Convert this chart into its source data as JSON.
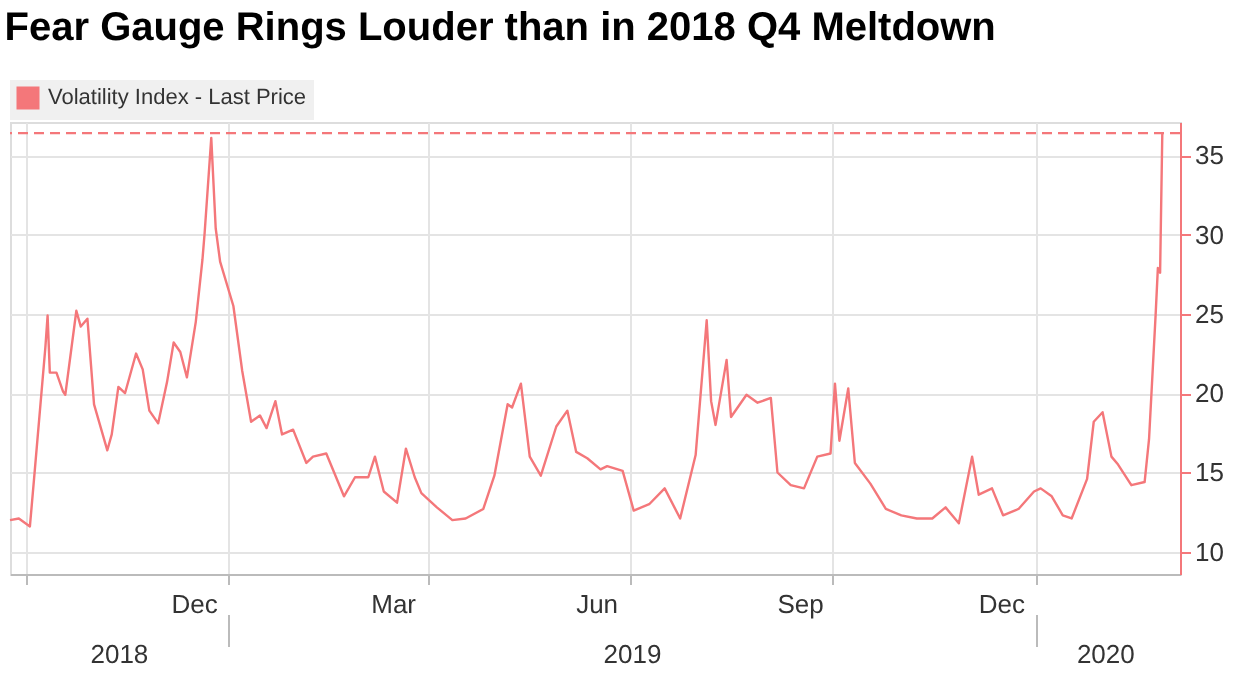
{
  "chart_data": {
    "type": "line",
    "title": "Fear Gauge Rings Louder than in 2018 Q4 Meltdown",
    "x": [
      "2018-09-24",
      "2018-09-28",
      "2018-10-03",
      "2018-10-05",
      "2018-10-10",
      "2018-10-11",
      "2018-10-12",
      "2018-10-15",
      "2018-10-18",
      "2018-10-19",
      "2018-10-24",
      "2018-10-26",
      "2018-10-29",
      "2018-11-01",
      "2018-11-07",
      "2018-11-09",
      "2018-11-12",
      "2018-11-15",
      "2018-11-20",
      "2018-11-23",
      "2018-11-26",
      "2018-11-30",
      "2018-12-04",
      "2018-12-07",
      "2018-12-10",
      "2018-12-13",
      "2018-12-17",
      "2018-12-20",
      "2018-12-21",
      "2018-12-24",
      "2018-12-26",
      "2018-12-28",
      "2019-01-03",
      "2019-01-07",
      "2019-01-11",
      "2019-01-15",
      "2019-01-18",
      "2019-01-22",
      "2019-01-25",
      "2019-01-30",
      "2019-02-05",
      "2019-02-08",
      "2019-02-14",
      "2019-02-22",
      "2019-02-27",
      "2019-03-05",
      "2019-03-08",
      "2019-03-12",
      "2019-03-18",
      "2019-03-22",
      "2019-03-26",
      "2019-03-29",
      "2019-04-05",
      "2019-04-12",
      "2019-04-18",
      "2019-04-26",
      "2019-05-01",
      "2019-05-07",
      "2019-05-09",
      "2019-05-13",
      "2019-05-17",
      "2019-05-22",
      "2019-05-29",
      "2019-06-03",
      "2019-06-07",
      "2019-06-12",
      "2019-06-18",
      "2019-06-21",
      "2019-06-28",
      "2019-07-03",
      "2019-07-10",
      "2019-07-17",
      "2019-07-24",
      "2019-07-31",
      "2019-08-05",
      "2019-08-07",
      "2019-08-09",
      "2019-08-14",
      "2019-08-16",
      "2019-08-23",
      "2019-08-28",
      "2019-09-03",
      "2019-09-06",
      "2019-09-12",
      "2019-09-18",
      "2019-09-24",
      "2019-09-30",
      "2019-10-02",
      "2019-10-04",
      "2019-10-08",
      "2019-10-11",
      "2019-10-18",
      "2019-10-25",
      "2019-11-01",
      "2019-11-08",
      "2019-11-15",
      "2019-11-21",
      "2019-11-27",
      "2019-12-03",
      "2019-12-06",
      "2019-12-12",
      "2019-12-17",
      "2019-12-24",
      "2019-12-31",
      "2020-01-03",
      "2020-01-08",
      "2020-01-13",
      "2020-01-17",
      "2020-01-24",
      "2020-01-27",
      "2020-01-31",
      "2020-02-04",
      "2020-02-07",
      "2020-02-13",
      "2020-02-19",
      "2020-02-21",
      "2020-02-24",
      "2020-02-25",
      "2020-02-26",
      "2020-02-27"
    ],
    "series": [
      {
        "name": "Volatility Index - Last Price",
        "color": "#f4777a",
        "values": [
          12.0,
          12.1,
          11.6,
          14.8,
          22.9,
          24.9,
          21.3,
          21.3,
          20.1,
          19.9,
          25.2,
          24.2,
          24.7,
          19.3,
          16.4,
          17.4,
          20.4,
          20.0,
          22.5,
          21.5,
          18.9,
          18.1,
          20.7,
          23.2,
          22.6,
          21.0,
          24.5,
          28.4,
          30.1,
          36.1,
          30.4,
          28.3,
          25.5,
          21.4,
          18.2,
          18.6,
          17.8,
          19.5,
          17.4,
          17.7,
          15.6,
          16.0,
          16.2,
          13.5,
          14.7,
          14.7,
          16.0,
          13.8,
          13.1,
          16.5,
          14.7,
          13.7,
          12.8,
          12.0,
          12.1,
          12.7,
          14.8,
          19.3,
          19.1,
          20.6,
          16.0,
          14.8,
          17.9,
          18.9,
          16.3,
          15.9,
          15.2,
          15.4,
          15.1,
          12.6,
          13.0,
          14.0,
          12.1,
          16.1,
          24.6,
          19.5,
          18.0,
          22.1,
          18.5,
          19.9,
          19.4,
          19.7,
          15.0,
          14.2,
          14.0,
          16.0,
          16.2,
          20.6,
          17.0,
          20.3,
          15.6,
          14.3,
          12.7,
          12.3,
          12.1,
          12.1,
          12.8,
          11.8,
          16.0,
          13.6,
          14.0,
          12.3,
          12.7,
          13.8,
          14.0,
          13.5,
          12.3,
          12.1,
          14.6,
          18.2,
          18.8,
          16.0,
          15.5,
          14.2,
          14.4,
          17.1,
          25.0,
          27.9,
          27.6,
          36.4
        ]
      }
    ],
    "xlim": [
      "2018-09-24",
      "2020-03-06"
    ],
    "xticks": [
      {
        "value": "2018-10-01",
        "label": null
      },
      {
        "value": "2018-12-16",
        "label": "Dec"
      },
      {
        "value": "2019-01-01",
        "label": null
      },
      {
        "value": "2019-03-16",
        "label": "Mar"
      },
      {
        "value": "2019-04-01",
        "label": null
      },
      {
        "value": "2019-06-16",
        "label": "Jun"
      },
      {
        "value": "2019-07-01",
        "label": null
      },
      {
        "value": "2019-09-16",
        "label": "Sep"
      },
      {
        "value": "2019-10-01",
        "label": null
      },
      {
        "value": "2019-12-16",
        "label": "Dec"
      },
      {
        "value": "2020-01-01",
        "label": null
      }
    ],
    "x2lim": [
      "2018-09-24",
      "2020-03-06"
    ],
    "x2ticks": [
      {
        "value": "2018-11-12",
        "label": "2018"
      },
      {
        "value": "2019-01-01",
        "label": null
      },
      {
        "value": "2019-07-02",
        "label": "2019"
      },
      {
        "value": "2020-01-01",
        "label": null
      },
      {
        "value": "2020-02-01",
        "label": "2020"
      }
    ],
    "ylim": [
      8.6,
      37.1
    ],
    "yticks": [
      10,
      15,
      20,
      25,
      30,
      35
    ],
    "ref_lines": [
      {
        "axis": "y",
        "value": 36.4,
        "label": null,
        "line_style": "dashed"
      }
    ],
    "grid": true,
    "legend": "top left",
    "line_style": "solid",
    "marker": "none"
  }
}
